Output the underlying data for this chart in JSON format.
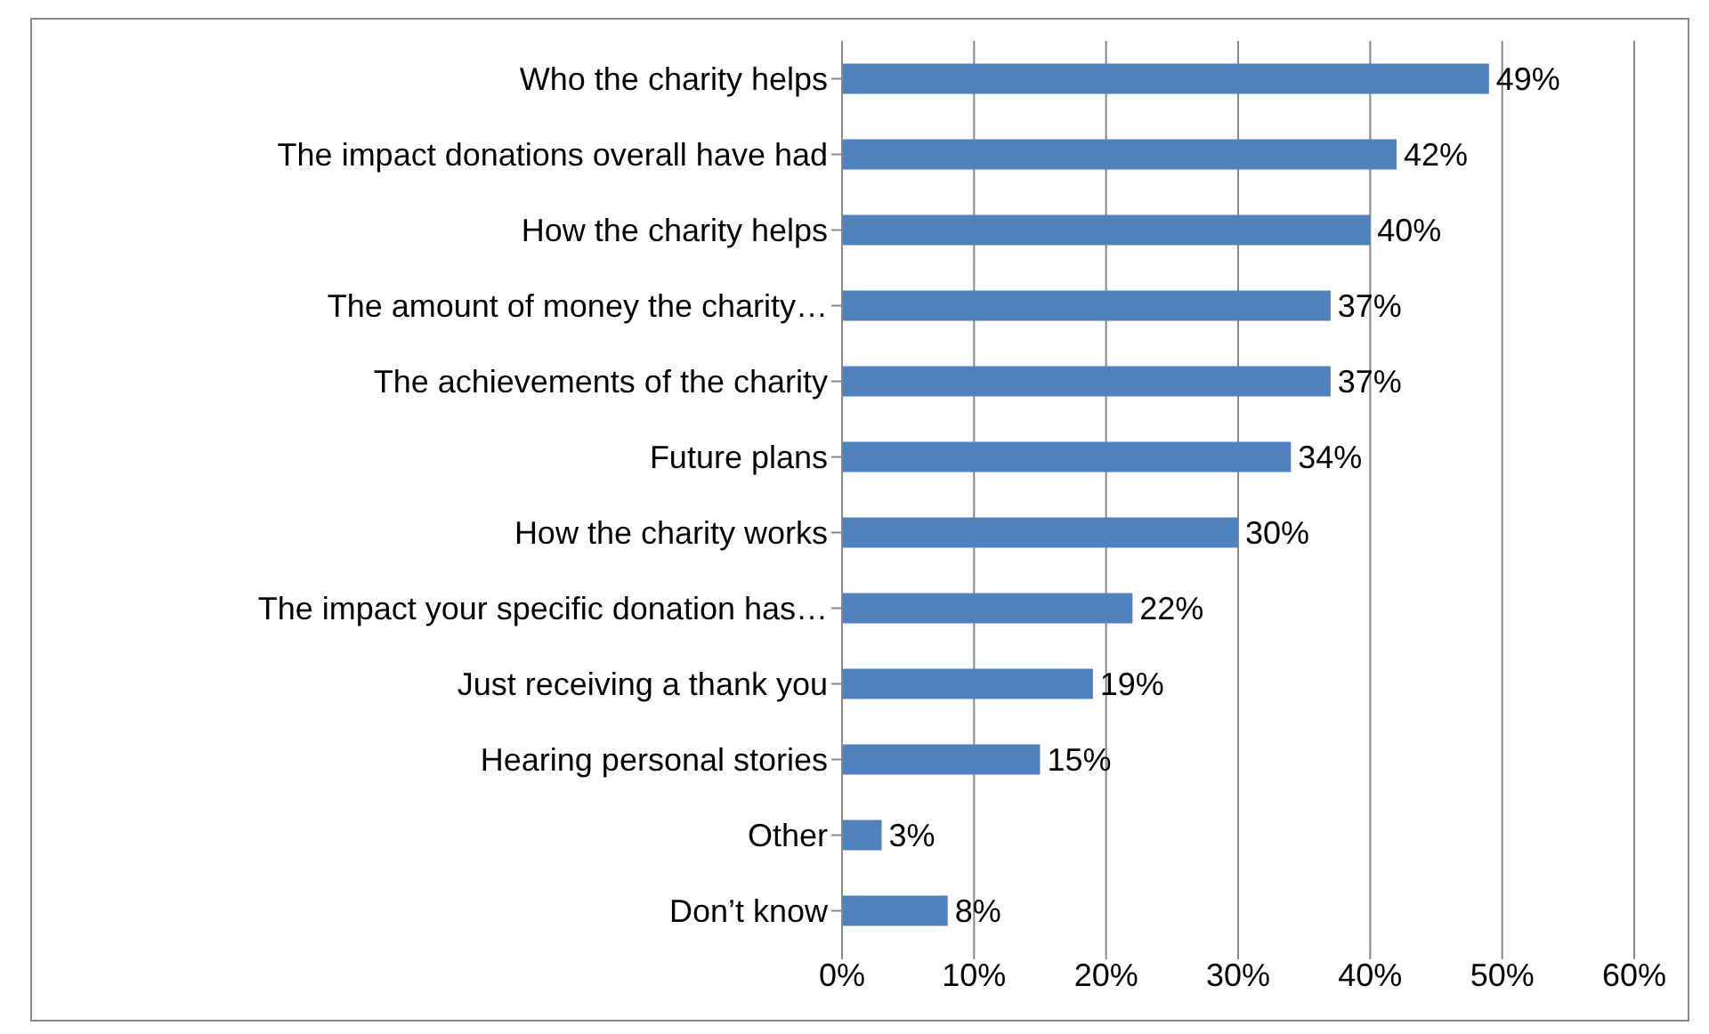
{
  "chart_data": {
    "type": "bar",
    "orientation": "horizontal",
    "categories": [
      "Who the charity helps",
      "The impact donations overall have had",
      "How the charity helps",
      "The amount of money the charity…",
      "The achievements of the charity",
      "Future plans",
      "How the charity works",
      "The impact your specific donation has…",
      "Just receiving a thank you",
      "Hearing personal stories",
      "Other",
      "Don’t know"
    ],
    "values": [
      49,
      42,
      40,
      37,
      37,
      34,
      30,
      22,
      19,
      15,
      3,
      8
    ],
    "value_labels": [
      "49%",
      "42%",
      "40%",
      "37%",
      "37%",
      "34%",
      "30%",
      "22%",
      "19%",
      "15%",
      "3%",
      "8%"
    ],
    "color": "#4f81bd",
    "xlim": [
      0,
      60
    ],
    "xticks": [
      {
        "value": 0,
        "label": "0%"
      },
      {
        "value": 10,
        "label": "10%"
      },
      {
        "value": 20,
        "label": "20%"
      },
      {
        "value": 30,
        "label": "30%"
      },
      {
        "value": 40,
        "label": "40%"
      },
      {
        "value": 50,
        "label": "50%"
      },
      {
        "value": 60,
        "label": "60%"
      }
    ],
    "grid": "x",
    "legend": false
  }
}
